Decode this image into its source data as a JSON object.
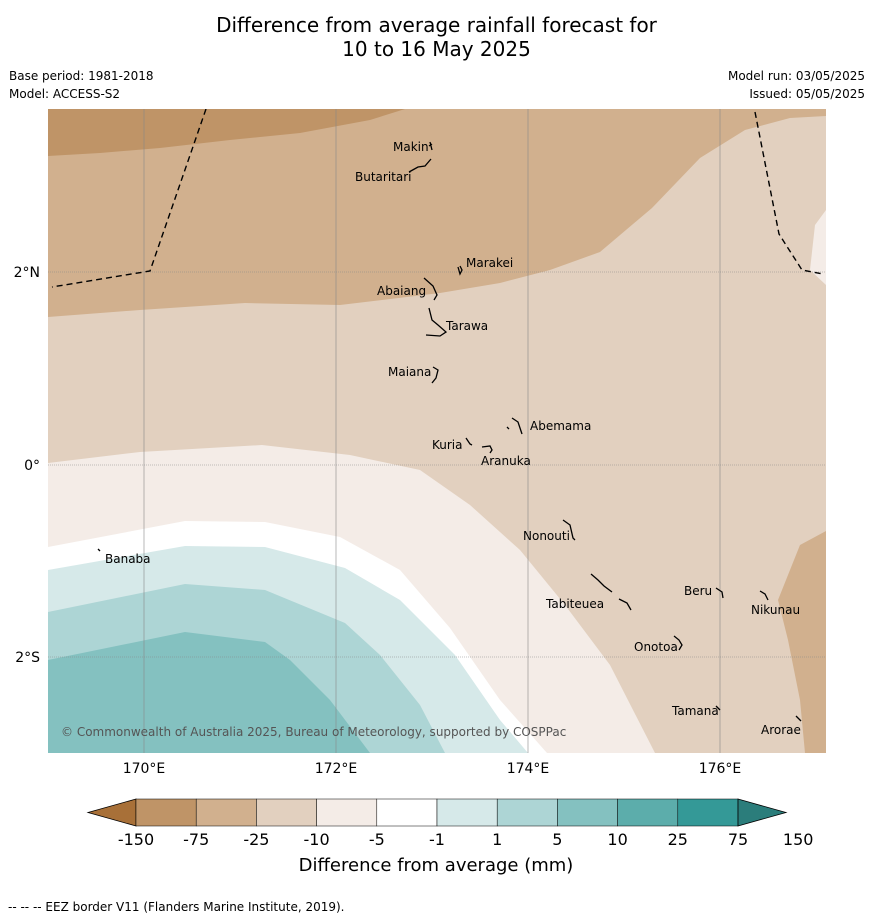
{
  "title": {
    "line1": "Difference from average rainfall forecast for",
    "line2": "10 to 16 May 2025"
  },
  "meta": {
    "base_period": "Base period: 1981-2018",
    "model": "Model: ACCESS-S2",
    "model_run": "Model run: 03/05/2025",
    "issued": "Issued: 05/05/2025"
  },
  "axes": {
    "lon_ticks": [
      "170°E",
      "172°E",
      "174°E",
      "176°E"
    ],
    "lat_ticks": [
      "2°N",
      "0°",
      "2°S"
    ]
  },
  "places": {
    "makin": "Makin",
    "butaritari": "Butaritari",
    "marakei": "Marakei",
    "abaiang": "Abaiang",
    "tarawa": "Tarawa",
    "maiana": "Maiana",
    "abemama": "Abemama",
    "kuria": "Kuria",
    "aranuka": "Aranuka",
    "nonouti": "Nonouti",
    "banaba": "Banaba",
    "beru": "Beru",
    "nikunau": "Nikunau",
    "tabiteuea": "Tabiteuea",
    "onotoa": "Onotoa",
    "tamana": "Tamana",
    "arorae": "Arorae"
  },
  "copyright": "© Commonwealth of Australia 2025, Bureau of Meteorology, supported by COSPPac",
  "colorbar": {
    "title": "Difference from average (mm)",
    "ticks": [
      "-150",
      "-75",
      "-25",
      "-10",
      "-5",
      "-1",
      "1",
      "5",
      "10",
      "25",
      "75",
      "150"
    ],
    "colors": [
      "#a87038",
      "#bf9467",
      "#d1b08e",
      "#e2d0bf",
      "#f4ece7",
      "#ffffff",
      "#d6e9e9",
      "#add5d5",
      "#84c1c0",
      "#5cadab",
      "#349997",
      "#2b7d7b"
    ]
  },
  "footer": "-- -- -- EEZ border V11 (Flanders Marine Institute, 2019)."
}
